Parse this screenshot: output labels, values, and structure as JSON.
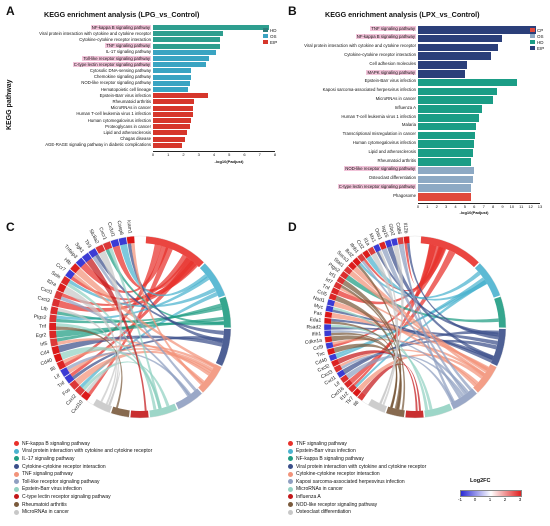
{
  "panels": {
    "A": {
      "letter": "A",
      "title": "KEGG enrichment analysis (LPG_vs_Control)",
      "ylabel": "KEGG pathway",
      "xlabel": "-log10(Padjust)",
      "xticks": [
        "0",
        "1",
        "2",
        "3",
        "4",
        "5",
        "6",
        "7",
        "8"
      ],
      "legend": [
        {
          "label": "HD",
          "color": "#2e7d7a"
        },
        {
          "label": "OS",
          "color": "#3aa4c2"
        },
        {
          "label": "EIP",
          "color": "#d6362b"
        }
      ]
    },
    "B": {
      "letter": "B",
      "title": "KEGG enrichment analysis (LPX_vs_Control)",
      "xlabel": "-log10(Padjust)",
      "xticks": [
        "0",
        "1",
        "2",
        "3",
        "4",
        "5",
        "6",
        "7",
        "8",
        "9",
        "10",
        "11",
        "12",
        "13"
      ],
      "legend": [
        {
          "label": "CP",
          "color": "#e0483b"
        },
        {
          "label": "OS",
          "color": "#8da9c4"
        },
        {
          "label": "HD",
          "color": "#1b9d86"
        },
        {
          "label": "EIP",
          "color": "#2b3f7a"
        }
      ]
    },
    "C": {
      "letter": "C",
      "genes": [
        "Cxcl10",
        "Cxcl2",
        "Fos",
        "Tnf",
        "Lif",
        "Il6",
        "Cd40",
        "Cd4",
        "Irf5",
        "Egr2",
        "Trif",
        "Ptgs2",
        "Ltb",
        "Cxcl3",
        "Cxcl1",
        "Il2ra",
        "Sele",
        "Ccr7",
        "Hlb",
        "Tnfaip3",
        "Sgk1",
        "Tlr3",
        "Slc8a2",
        "Cxcr1",
        "Cx3cl1",
        "Casp8",
        "Icam1"
      ],
      "legend": [
        {
          "label": "NF-kappa B signaling pathway",
          "color": "#e8312b"
        },
        {
          "label": "Viral protein interaction with cytokine and cytokine receptor",
          "color": "#4bb3cf"
        },
        {
          "label": "IL-17 signaling pathway",
          "color": "#1f9c82"
        },
        {
          "label": "Cytokine-cytokine receptor interaction",
          "color": "#3b4f8a"
        },
        {
          "label": "TNF signaling pathway",
          "color": "#f2937a"
        },
        {
          "label": "Toll-like receptor signaling pathway",
          "color": "#8f9fc1"
        },
        {
          "label": "Epstein-Barr virus infection",
          "color": "#92d1c2"
        },
        {
          "label": "C-type lectin receptor signaling pathway",
          "color": "#c3181a"
        },
        {
          "label": "Rheumatoid arthritis",
          "color": "#7a5a3c"
        },
        {
          "label": "MicroRNAs in cancer",
          "color": "#c8c8c8"
        }
      ]
    },
    "D": {
      "letter": "D",
      "genes": [
        "Il6",
        "Tlr7",
        "Il1r2",
        "Cxcl16",
        "Lif",
        "Cxcl1",
        "Cxcl3",
        "Cxcl2",
        "Cd40",
        "Tnc",
        "Ccl9",
        "Cdkn1a",
        "Ifih1",
        "Rsad2",
        "Eda1",
        "Fas",
        "Myc",
        "Nod1",
        "Ccl5",
        "Tnf",
        "Irf7",
        "Irf1",
        "Ptgs2",
        "Stat1",
        "Socs3",
        "Bcl2",
        "Ifnb1",
        "Ccl2",
        "Il1a",
        "Mx1",
        "Oas1",
        "Isg15",
        "Gbp2",
        "Cd86",
        "Il12b"
      ],
      "legend": [
        {
          "label": "TNF signaling pathway",
          "color": "#e8312b"
        },
        {
          "label": "Epstein-Barr virus infection",
          "color": "#4bb3cf"
        },
        {
          "label": "NF-kappa B signaling pathway",
          "color": "#1f9c82"
        },
        {
          "label": "Viral protein interaction with cytokine and cytokine receptor",
          "color": "#3b4f8a"
        },
        {
          "label": "Cytokine-cytokine receptor interaction",
          "color": "#f2937a"
        },
        {
          "label": "Kaposi sarcoma-associated herpesvirus infection",
          "color": "#8f9fc1"
        },
        {
          "label": "MicroRNAs in cancer",
          "color": "#92d1c2"
        },
        {
          "label": "Influenza A",
          "color": "#c3181a"
        },
        {
          "label": "NOD-like receptor signaling pathway",
          "color": "#7a5a3c"
        },
        {
          "label": "Osteoclast differentiation",
          "color": "#c8c8c8"
        }
      ],
      "fc_title": "Log2FC",
      "fc_ticks": [
        "-1",
        "0",
        "1",
        "2",
        "3"
      ]
    }
  },
  "chart_data": [
    {
      "type": "bar",
      "title": "KEGG enrichment analysis (LPG_vs_Control)",
      "xlabel": "-log10(Padjust)",
      "ylabel": "KEGG pathway",
      "xlim": [
        0,
        8
      ],
      "categories": [
        "NF-kappa B signaling pathway",
        "Viral protein interaction with cytokine and cytokine receptor",
        "Cytokine-cytokine receptor interaction",
        "TNF signaling pathway",
        "IL-17 signaling pathway",
        "Toll-like receptor signaling pathway",
        "C-type lectin receptor signaling pathway",
        "Cytosolic DNA-sensing pathway",
        "Chemokine signaling pathway",
        "NOD-like receptor signaling pathway",
        "Hematopoietic cell lineage",
        "Epstein-Barr virus infection",
        "Rheumatoid arthritis",
        "MicroRNAs in cancer",
        "Human T-cell leukemia virus 1 infection",
        "Human cytomegalovirus infection",
        "Proteoglycans in cancer",
        "Lipid and atherosclerosis",
        "Chagas disease",
        "AGE-RAGE signaling pathway in diabetic complications"
      ],
      "highlighted": [
        "NF-kappa B signaling pathway",
        "TNF signaling pathway",
        "Toll-like receptor signaling pathway",
        "C-type lectin receptor signaling pathway"
      ],
      "values": [
        7.6,
        4.6,
        4.4,
        4.4,
        4.1,
        3.7,
        3.5,
        2.5,
        2.5,
        2.4,
        2.3,
        3.6,
        2.7,
        2.6,
        2.6,
        2.5,
        2.4,
        2.2,
        2.1,
        1.9
      ],
      "class": [
        "OS",
        "OS",
        "OS",
        "OS",
        "OS",
        "OS",
        "OS",
        "OS",
        "OS",
        "OS",
        "OS",
        "EIP",
        "EIP",
        "EIP",
        "EIP",
        "EIP",
        "EIP",
        "EIP",
        "EIP",
        "EIP"
      ],
      "class_colors": {
        "HD": "#2e7d7a",
        "OS": "#3aa4c2",
        "EIP": "#d6362b"
      },
      "bar_colors": [
        "#2e9e8f",
        "#2e9e8f",
        "#2e9e8f",
        "#2e9e8f",
        "#3aa4c2",
        "#3aa4c2",
        "#3aa4c2",
        "#3aa4c2",
        "#3aa4c2",
        "#3aa4c2",
        "#3aa4c2",
        "#d6362b",
        "#d6362b",
        "#d6362b",
        "#d6362b",
        "#d6362b",
        "#d6362b",
        "#d6362b",
        "#d6362b",
        "#d6362b"
      ]
    },
    {
      "type": "bar",
      "title": "KEGG enrichment analysis (LPX_vs_Control)",
      "xlabel": "-log10(Padjust)",
      "xlim": [
        0,
        13
      ],
      "categories": [
        "TNF signaling pathway",
        "NF-kappa B signaling pathway",
        "Viral protein interaction with cytokine and cytokine receptor",
        "Cytokine-cytokine receptor interaction",
        "Cell adhesion molecules",
        "MAPK signaling pathway",
        "Epstein-Barr virus infection",
        "Kaposi sarcoma-associated herpesvirus infection",
        "MicroRNAs in cancer",
        "Influenza A",
        "Human T-cell leukemia virus 1 infection",
        "Malaria",
        "Transcriptional misregulation in cancer",
        "Human cytomegalovirus infection",
        "Lipid and atherosclerosis",
        "Rheumatoid arthritis",
        "NOD-like receptor signaling pathway",
        "Osteoclast differentiation",
        "C-type lectin receptor signaling pathway",
        "Phagosome"
      ],
      "highlighted": [
        "TNF signaling pathway",
        "NF-kappa B signaling pathway",
        "MAPK signaling pathway",
        "NOD-like receptor signaling pathway",
        "C-type lectin receptor signaling pathway"
      ],
      "values": [
        12.6,
        9.0,
        8.5,
        7.8,
        5.2,
        5.0,
        10.5,
        8.4,
        8.0,
        6.8,
        6.5,
        6.2,
        6.1,
        6.0,
        5.9,
        5.7,
        6.0,
        5.9,
        5.7,
        5.6
      ],
      "class": [
        "EIP",
        "EIP",
        "EIP",
        "EIP",
        "EIP",
        "EIP",
        "HD",
        "HD",
        "HD",
        "HD",
        "HD",
        "HD",
        "HD",
        "HD",
        "HD",
        "HD",
        "OS",
        "OS",
        "OS",
        "CP"
      ],
      "class_colors": {
        "CP": "#e0483b",
        "OS": "#8da9c4",
        "HD": "#1b9d86",
        "EIP": "#2b3f7a"
      },
      "bar_colors": [
        "#2b3f7a",
        "#2b3f7a",
        "#2b3f7a",
        "#2b3f7a",
        "#2b3f7a",
        "#2b3f7a",
        "#1b9d86",
        "#1b9d86",
        "#1b9d86",
        "#1b9d86",
        "#1b9d86",
        "#1b9d86",
        "#1b9d86",
        "#1b9d86",
        "#1b9d86",
        "#1b9d86",
        "#8da9c4",
        "#8da9c4",
        "#8da9c4",
        "#e0483b"
      ]
    }
  ]
}
